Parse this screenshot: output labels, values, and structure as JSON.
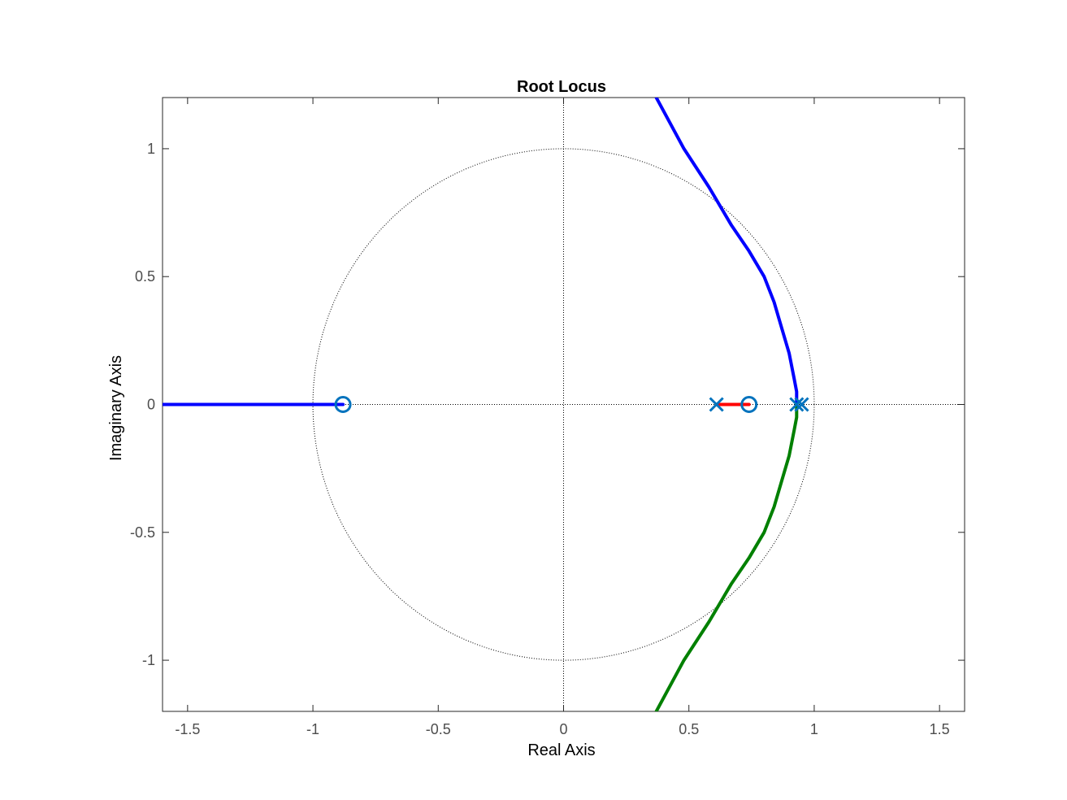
{
  "chart_data": {
    "type": "line",
    "title": "Root Locus",
    "xlabel": "Real Axis",
    "ylabel": "Imaginary Axis",
    "xlim": [
      -1.6,
      1.6
    ],
    "ylim": [
      -1.2,
      1.2
    ],
    "xticks": [
      -1.5,
      -1,
      -0.5,
      0,
      0.5,
      1,
      1.5
    ],
    "xtick_labels": [
      "-1.5",
      "-1",
      "-0.5",
      "0",
      "0.5",
      "1",
      "1.5"
    ],
    "yticks": [
      -1,
      -0.5,
      0,
      0.5,
      1
    ],
    "ytick_labels": [
      "-1",
      "-0.5",
      "0",
      "0.5",
      "1"
    ],
    "grid": false,
    "legend": "none",
    "unit_circle": true,
    "reference_lines": {
      "x": 0,
      "y": 0
    },
    "poles": [
      {
        "re": 0.61,
        "im": 0
      },
      {
        "re": 0.93,
        "im": 0
      },
      {
        "re": 0.95,
        "im": 0
      }
    ],
    "zeros": [
      {
        "re": -0.88,
        "im": 0
      },
      {
        "re": 0.74,
        "im": 0
      }
    ],
    "series": [
      {
        "color": "#0000ff",
        "x": [
          -1.6,
          -0.88
        ],
        "y": [
          0,
          0
        ]
      },
      {
        "color": "#ff0000",
        "x": [
          0.61,
          0.74
        ],
        "y": [
          0,
          0
        ]
      },
      {
        "color": "#0000ff",
        "x": [
          0.93,
          0.93,
          0.92,
          0.9,
          0.87,
          0.84,
          0.8,
          0.74,
          0.67,
          0.58,
          0.48,
          0.37
        ],
        "y": [
          0,
          0.05,
          0.1,
          0.2,
          0.3,
          0.4,
          0.5,
          0.6,
          0.7,
          0.85,
          1.0,
          1.2
        ]
      },
      {
        "color": "#008000",
        "x": [
          0.93,
          0.93,
          0.92,
          0.9,
          0.87,
          0.84,
          0.8,
          0.74,
          0.67,
          0.58,
          0.48,
          0.37
        ],
        "y": [
          0,
          -0.05,
          -0.1,
          -0.2,
          -0.3,
          -0.4,
          -0.5,
          -0.6,
          -0.7,
          -0.85,
          -1.0,
          -1.2
        ]
      }
    ],
    "marker_color": "#0072bd"
  }
}
